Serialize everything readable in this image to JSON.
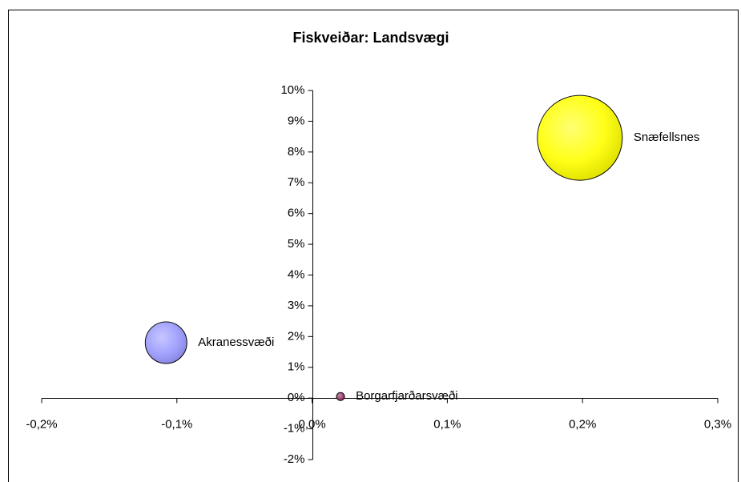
{
  "chart_data": {
    "type": "bubble",
    "title": "Fiskveiðar: Landsvægi",
    "series": [
      {
        "name": "Akranessvæði",
        "color": "#9999ff",
        "x": [
          -0.108
        ],
        "values": [
          1.8
        ],
        "sizes": [
          24
        ]
      },
      {
        "name": "Borgarfjarðarsvæði",
        "color": "#993366",
        "x": [
          0.021
        ],
        "values": [
          0.05
        ],
        "sizes": [
          0.9
        ]
      },
      {
        "name": "Snæfellsnes",
        "color": "#ffff00",
        "x": [
          0.198
        ],
        "values": [
          8.46
        ],
        "sizes": [
          100
        ]
      }
    ],
    "xlim": [
      -0.2,
      0.3
    ],
    "xticks": [
      {
        "value": -0.2,
        "label": "-0,2%"
      },
      {
        "value": -0.1,
        "label": "-0,1%"
      },
      {
        "value": 0,
        "label": "0,0%"
      },
      {
        "value": 0.1,
        "label": "0,1%"
      },
      {
        "value": 0.2,
        "label": "0,2%"
      },
      {
        "value": 0.3,
        "label": "0,3%"
      }
    ],
    "ylim": [
      -2,
      10
    ],
    "yticks": [
      {
        "value": -2,
        "label": "-2%"
      },
      {
        "value": -1,
        "label": "-1%"
      },
      {
        "value": 0,
        "label": "0%"
      },
      {
        "value": 1,
        "label": "1%"
      },
      {
        "value": 2,
        "label": "2%"
      },
      {
        "value": 3,
        "label": "3%"
      },
      {
        "value": 4,
        "label": "4%"
      },
      {
        "value": 5,
        "label": "5%"
      },
      {
        "value": 6,
        "label": "6%"
      },
      {
        "value": 7,
        "label": "7%"
      },
      {
        "value": 8,
        "label": "8%"
      },
      {
        "value": 9,
        "label": "9%"
      },
      {
        "value": 10,
        "label": "10%"
      }
    ]
  }
}
